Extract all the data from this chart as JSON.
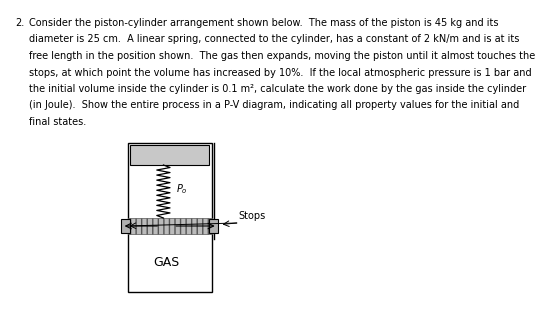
{
  "title_number": "2.",
  "text_lines": [
    "Consider the piston-cylinder arrangement shown below.  The mass of the piston is 45 kg and its",
    "diameter is 25 cm.  A linear spring, connected to the cylinder, has a constant of 2 kN/m and is at its",
    "free length in the position shown.  The gas then expands, moving the piston until it almost touches the",
    "stops, at which point the volume has increased by 10%.  If the local atmospheric pressure is 1 bar and",
    "the initial volume inside the cylinder is 0.1 m², calculate the work done by the gas inside the cylinder",
    "(in Joule).  Show the entire process in a P-V diagram, indicating all property values for the initial and",
    "final states."
  ],
  "bg_color": "#ffffff",
  "piston_top_color": "#c8c8c8",
  "stop_color": "#b0b0b0",
  "hatch_color": "#aaaaaa",
  "gas_label": "GAS",
  "po_label": "Pₒ",
  "stops_label": "Stops"
}
